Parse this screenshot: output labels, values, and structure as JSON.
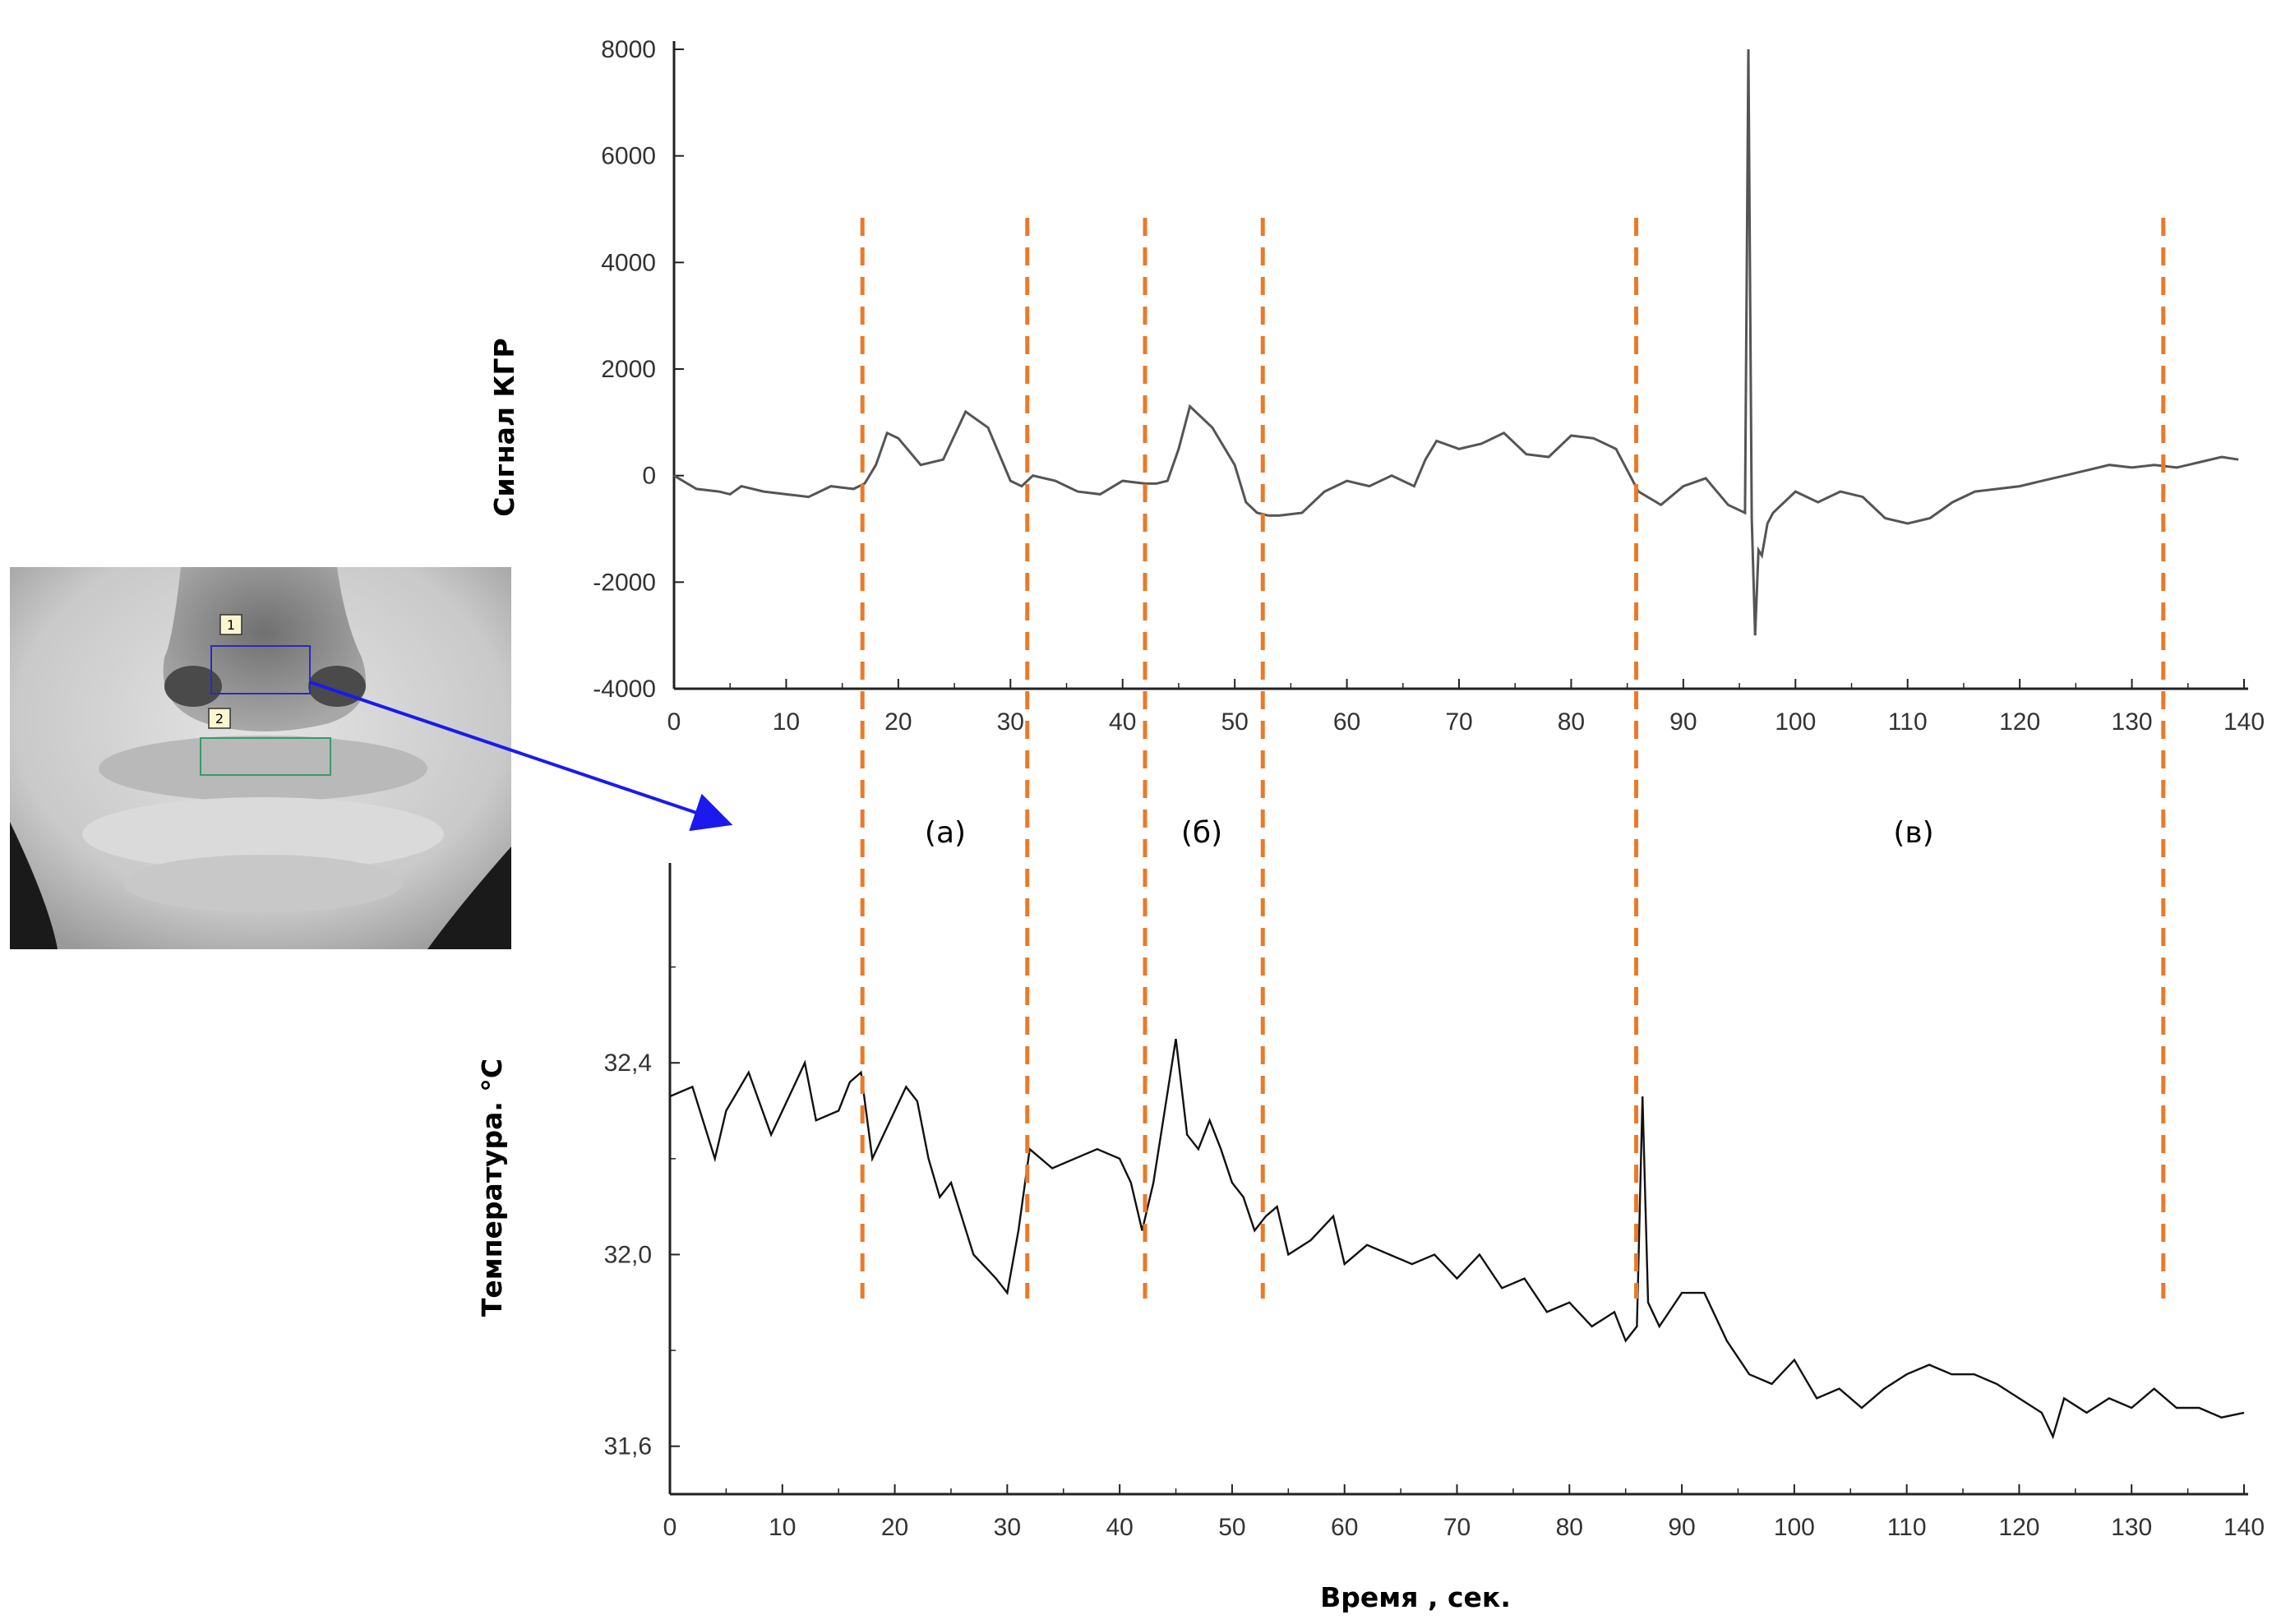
{
  "figure": {
    "periods": [
      "(а)",
      "(б)",
      "(в)"
    ],
    "dashed_color": "#e87a2a",
    "thermal_image": {
      "roi_labels": [
        "1",
        "2"
      ],
      "roi_colors": [
        "#2b2bb8",
        "#3a9a6a"
      ],
      "arrow_color": "#1a1aee"
    }
  },
  "chart_data": [
    {
      "type": "line",
      "ylabel": "Сигнал КГР",
      "xlabel": "",
      "xlim": [
        0,
        140
      ],
      "ylim": [
        -4000,
        8000
      ],
      "xticks": [
        0,
        10,
        20,
        30,
        40,
        50,
        60,
        70,
        80,
        90,
        100,
        110,
        120,
        130,
        140
      ],
      "yticks": [
        "-4000",
        "-2000",
        "0",
        "2000",
        "4000",
        "6000",
        "8000"
      ],
      "ytick_values": [
        -4000,
        -2000,
        0,
        2000,
        4000,
        6000,
        8000
      ],
      "line_color": "#555555",
      "x": [
        0,
        2,
        4,
        5,
        6,
        8,
        10,
        12,
        14,
        16,
        17,
        18,
        19,
        20,
        22,
        24,
        26,
        28,
        30,
        31,
        32,
        34,
        36,
        38,
        40,
        42,
        43,
        44,
        45,
        46,
        48,
        50,
        51,
        52,
        53,
        54,
        56,
        58,
        60,
        62,
        64,
        66,
        67,
        68,
        70,
        72,
        74,
        76,
        78,
        80,
        82,
        84,
        86,
        88,
        90,
        92,
        94,
        95.5,
        95.8,
        96.1,
        96.4,
        96.7,
        97.0,
        97.5,
        98,
        100,
        102,
        104,
        106,
        108,
        110,
        112,
        114,
        116,
        118,
        120,
        122,
        124,
        126,
        128,
        130,
        132,
        134,
        136,
        138,
        139.5
      ],
      "y": [
        0,
        -250,
        -300,
        -350,
        -200,
        -300,
        -350,
        -400,
        -200,
        -250,
        -150,
        200,
        800,
        700,
        200,
        300,
        1200,
        900,
        -100,
        -200,
        0,
        -100,
        -300,
        -350,
        -100,
        -150,
        -150,
        -100,
        500,
        1300,
        900,
        200,
        -500,
        -700,
        -750,
        -750,
        -700,
        -300,
        -100,
        -200,
        0,
        -200,
        300,
        650,
        500,
        600,
        800,
        400,
        350,
        750,
        700,
        500,
        -300,
        -550,
        -200,
        -50,
        -550,
        -700,
        8000,
        -800,
        -3000,
        -1400,
        -1500,
        -900,
        -700,
        -300,
        -500,
        -300,
        -400,
        -800,
        -900,
        -800,
        -500,
        -300,
        -250,
        -200,
        -100,
        0,
        100,
        200,
        150,
        200,
        150,
        250,
        350,
        300
      ]
    },
    {
      "type": "line",
      "ylabel": "Температура. °С",
      "xlabel": "Время , сек.",
      "xlim": [
        0,
        140
      ],
      "ylim": [
        31.5,
        32.8
      ],
      "xticks": [
        0,
        10,
        20,
        30,
        40,
        50,
        60,
        70,
        80,
        90,
        100,
        110,
        120,
        130,
        140
      ],
      "yticks": [
        "31,6",
        "32,0",
        "32,4"
      ],
      "ytick_values": [
        31.6,
        32.0,
        32.4
      ],
      "line_color": "#111111",
      "x": [
        0,
        2,
        4,
        5,
        7,
        9,
        11,
        12,
        13,
        15,
        16,
        17,
        18,
        20,
        21,
        22,
        23,
        24,
        25,
        27,
        29,
        30,
        31,
        32,
        34,
        36,
        38,
        40,
        41,
        42,
        43,
        44,
        45,
        46,
        47,
        48,
        49,
        50,
        51,
        52,
        53,
        54,
        55,
        57,
        59,
        60,
        62,
        64,
        66,
        68,
        70,
        72,
        74,
        76,
        78,
        80,
        82,
        84,
        85,
        86,
        86.5,
        87,
        88,
        90,
        92,
        94,
        96,
        98,
        100,
        102,
        104,
        106,
        108,
        110,
        112,
        114,
        116,
        118,
        120,
        122,
        123,
        124,
        126,
        128,
        130,
        132,
        134,
        136,
        138,
        140
      ],
      "y": [
        32.33,
        32.35,
        32.2,
        32.3,
        32.38,
        32.25,
        32.35,
        32.4,
        32.28,
        32.3,
        32.36,
        32.38,
        32.2,
        32.3,
        32.35,
        32.32,
        32.2,
        32.12,
        32.15,
        32.0,
        31.95,
        31.92,
        32.05,
        32.22,
        32.18,
        32.2,
        32.22,
        32.2,
        32.15,
        32.05,
        32.15,
        32.3,
        32.45,
        32.25,
        32.22,
        32.28,
        32.22,
        32.15,
        32.12,
        32.05,
        32.08,
        32.1,
        32.0,
        32.03,
        32.08,
        31.98,
        32.02,
        32.0,
        31.98,
        32.0,
        31.95,
        32.0,
        31.93,
        31.95,
        31.88,
        31.9,
        31.85,
        31.88,
        31.82,
        31.85,
        32.33,
        31.9,
        31.85,
        31.92,
        31.92,
        31.82,
        31.75,
        31.73,
        31.78,
        31.7,
        31.72,
        31.68,
        31.72,
        31.75,
        31.77,
        31.75,
        31.75,
        31.73,
        31.7,
        31.67,
        31.62,
        31.7,
        31.67,
        31.7,
        31.68,
        31.72,
        31.68,
        31.68,
        31.66,
        31.67
      ]
    }
  ],
  "markers": {
    "x": [
      16.8,
      31.5,
      42,
      52.5,
      85.8,
      132.8
    ]
  }
}
